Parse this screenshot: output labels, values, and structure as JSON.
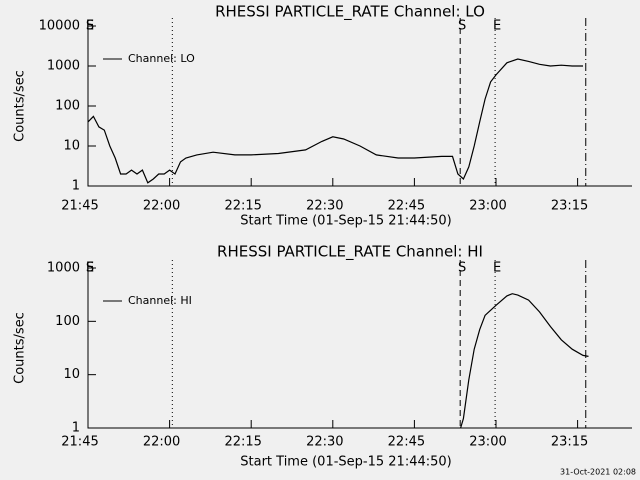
{
  "chart_data": [
    {
      "type": "line",
      "title": "RHESSI PARTICLE_RATE Channel: LO",
      "ylabel": "Counts/sec",
      "xlabel": "Start Time (01-Sep-15 21:44:50)",
      "log_y": true,
      "ylim": [
        1,
        10000
      ],
      "yticks": [
        1,
        10,
        100,
        1000,
        10000
      ],
      "xlim": [
        "21:45",
        "23:25"
      ],
      "xticks": [
        "21:45",
        "22:00",
        "22:15",
        "22:30",
        "22:45",
        "23:00",
        "23:15"
      ],
      "legend": "upper left",
      "vlines": [
        {
          "x": "22:00:30",
          "style": "dotted"
        },
        {
          "x": "22:53:25",
          "style": "dashed"
        },
        {
          "x": "22:59:50",
          "style": "dotted"
        },
        {
          "x": "23:16:30",
          "style": "dashdot"
        }
      ],
      "markers": [
        {
          "x": "21:45",
          "label": "S"
        },
        {
          "x": "21:45",
          "label": "E"
        },
        {
          "x": "22:53:25",
          "label": "S"
        },
        {
          "x": "22:59:50",
          "label": "E"
        }
      ],
      "series": [
        {
          "name": "Channel: LO",
          "color": "#000000",
          "x": [
            "21:45",
            "21:46",
            "21:47",
            "21:48",
            "21:49",
            "21:50",
            "21:51",
            "21:52",
            "21:53",
            "21:54",
            "21:55",
            "21:56",
            "21:57",
            "21:58",
            "21:59",
            "22:00",
            "22:01",
            "22:02",
            "22:03",
            "22:05",
            "22:08",
            "22:12",
            "22:15",
            "22:20",
            "22:25",
            "22:28",
            "22:30",
            "22:32",
            "22:35",
            "22:38",
            "22:42",
            "22:45",
            "22:50",
            "22:52",
            "22:53",
            "22:54",
            "22:55",
            "22:56",
            "22:57",
            "22:58",
            "22:59",
            "23:00",
            "23:02",
            "23:04",
            "23:06",
            "23:08",
            "23:10",
            "23:12",
            "23:14",
            "23:16"
          ],
          "values": [
            40,
            55,
            30,
            25,
            10,
            5,
            2,
            2,
            2.5,
            2,
            2.5,
            1.2,
            1.5,
            2,
            2,
            2.5,
            2,
            4,
            5,
            6,
            7,
            6,
            6,
            6.5,
            8,
            13,
            17,
            15,
            10,
            6,
            5,
            5,
            5.5,
            5.5,
            2,
            1.5,
            3,
            10,
            40,
            150,
            400,
            600,
            1200,
            1500,
            1300,
            1100,
            1000,
            1050,
            1000,
            1000
          ]
        }
      ]
    },
    {
      "type": "line",
      "title": "RHESSI PARTICLE_RATE Channel: HI",
      "ylabel": "Counts/sec",
      "xlabel": "Start Time (01-Sep-15 21:44:50)",
      "log_y": true,
      "ylim": [
        1,
        1000
      ],
      "yticks": [
        1,
        10,
        100,
        1000
      ],
      "xlim": [
        "21:45",
        "23:25"
      ],
      "xticks": [
        "21:45",
        "22:00",
        "22:15",
        "22:30",
        "22:45",
        "23:00",
        "23:15"
      ],
      "legend": "upper left",
      "vlines": [
        {
          "x": "22:00:30",
          "style": "dotted"
        },
        {
          "x": "22:53:25",
          "style": "dashed"
        },
        {
          "x": "22:59:50",
          "style": "dotted"
        },
        {
          "x": "23:16:30",
          "style": "dashdot"
        }
      ],
      "markers": [
        {
          "x": "21:45",
          "label": "S"
        },
        {
          "x": "21:45",
          "label": "E"
        },
        {
          "x": "22:53:25",
          "label": "S"
        },
        {
          "x": "22:59:50",
          "label": "E"
        }
      ],
      "series": [
        {
          "name": "Channel: HI",
          "color": "#000000",
          "x": [
            "22:53:30",
            "22:54",
            "22:55",
            "22:56",
            "22:57",
            "22:58",
            "23:00",
            "23:02",
            "23:03",
            "23:04",
            "23:06",
            "23:08",
            "23:10",
            "23:12",
            "23:14",
            "23:16",
            "23:17"
          ],
          "values": [
            1,
            1.5,
            8,
            30,
            70,
            130,
            200,
            300,
            330,
            310,
            250,
            150,
            80,
            45,
            30,
            23,
            22
          ]
        }
      ]
    }
  ],
  "footer": "31-Oct-2021 02:08"
}
